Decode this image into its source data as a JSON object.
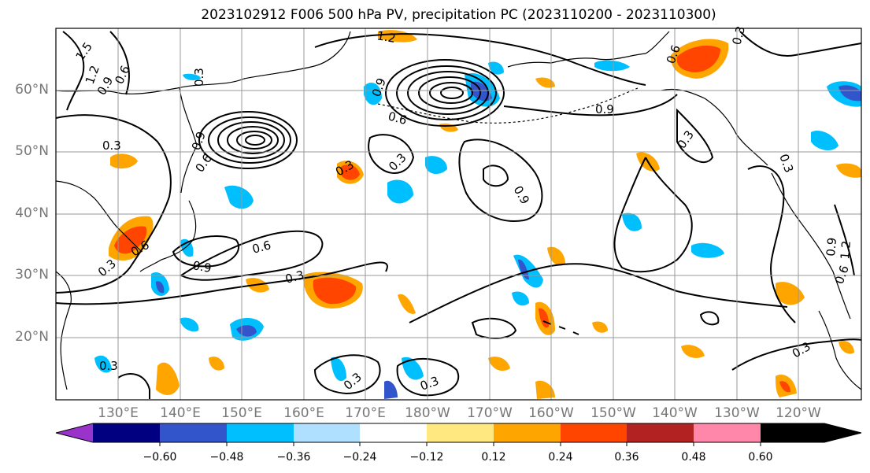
{
  "title": "2023102912 F006 500 hPa PV, precipitation PC (2023110200 - 2023110300)",
  "lat_labels": [
    "60°N",
    "50°N",
    "40°N",
    "30°N",
    "20°N"
  ],
  "lon_labels": [
    "130°E",
    "140°E",
    "150°E",
    "160°E",
    "170°E",
    "180°W",
    "170°W",
    "160°W",
    "150°W",
    "140°W",
    "130°W",
    "120°W"
  ],
  "contour_labels": [
    "1.5",
    "1.2",
    "0.9",
    "0.6",
    "0.3",
    "0.3",
    "0.9",
    "0.6",
    "0.3",
    "0.6",
    "0.9",
    "0.6",
    "0.3",
    "0.9",
    "0.6",
    "0.3",
    "0.3",
    "0.3",
    "0.9",
    "0.3",
    "0.3",
    "0.3",
    "0.3",
    "0.6",
    "1.2",
    "0.9",
    "0.3",
    "0.9",
    "1.2",
    "0.6",
    "0.3"
  ],
  "colorbar": {
    "tick_labels": [
      "−0.60",
      "−0.48",
      "−0.36",
      "−0.24",
      "−0.12",
      "0.12",
      "0.24",
      "0.36",
      "0.48",
      "0.60"
    ],
    "colors": [
      "#9933cc",
      "#000080",
      "#3355cc",
      "#00bfff",
      "#b0e0ff",
      "#ffffff",
      "#ffe880",
      "#ffa500",
      "#ff4500",
      "#b22222",
      "#ff88aa"
    ]
  }
}
